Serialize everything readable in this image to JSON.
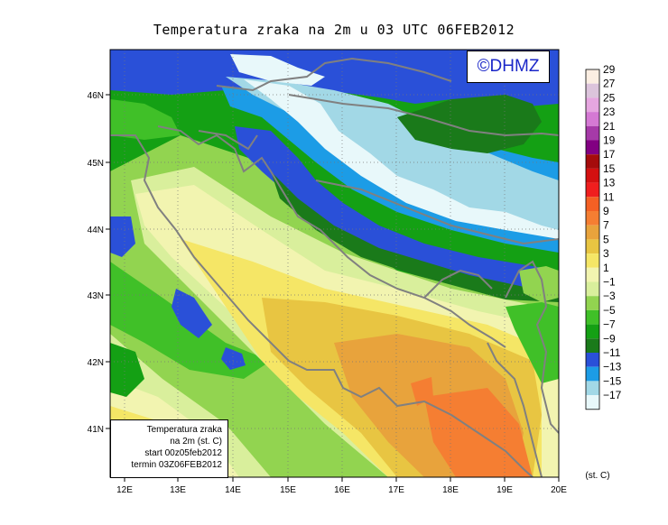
{
  "title": "Temperatura zraka na 2m u 03 UTC 06FEB2012",
  "watermark": "©DHMZ",
  "info_box": {
    "line1": "Temperatura zraka",
    "line2": "na 2m (st. C)",
    "line3": "start 00z05feb2012",
    "line4": "termin 03Z06FEB2012"
  },
  "axes": {
    "lon_ticks": [
      "12E",
      "13E",
      "14E",
      "15E",
      "16E",
      "17E",
      "18E",
      "19E",
      "20E"
    ],
    "lat_ticks": [
      "46N",
      "45N",
      "44N",
      "43N",
      "42N",
      "41N"
    ]
  },
  "legend": {
    "unit": "(st. C)",
    "labels": [
      "29",
      "27",
      "25",
      "23",
      "21",
      "19",
      "17",
      "15",
      "13",
      "11",
      "9",
      "7",
      "5",
      "3",
      "1",
      "−1",
      "−3",
      "−5",
      "−7",
      "−9",
      "−11",
      "−13",
      "−15",
      "−17"
    ],
    "colors": [
      "#fbeee2",
      "#dcc4dc",
      "#e6a6e0",
      "#d579d4",
      "#a63aa8",
      "#820082",
      "#a50c0c",
      "#d41010",
      "#f01e1e",
      "#f46024",
      "#f57e32",
      "#e8a33c",
      "#e8c542",
      "#f5e666",
      "#f2f4b0",
      "#d9ef9c",
      "#92d450",
      "#40c028",
      "#14a014",
      "#1a7a1a",
      "#2a50d8",
      "#1c9ce6",
      "#a2d8e6",
      "#e8f8fa"
    ]
  },
  "field_colors": {
    "t_m15": "#e8f8fa",
    "t_m13": "#a2d8e6",
    "t_m11": "#1c9ce6",
    "t_m9": "#2a50d8",
    "t_m7": "#1a7a1a",
    "t_m5": "#14a014",
    "t_m3": "#40c028",
    "t_m1": "#92d450",
    "t_p1": "#d9ef9c",
    "t_p3": "#f2f4b0",
    "t_p5": "#f5e666",
    "t_p7": "#e8c542",
    "t_p9": "#e8a33c",
    "t_p11": "#f57e32",
    "coast": "#808080"
  }
}
